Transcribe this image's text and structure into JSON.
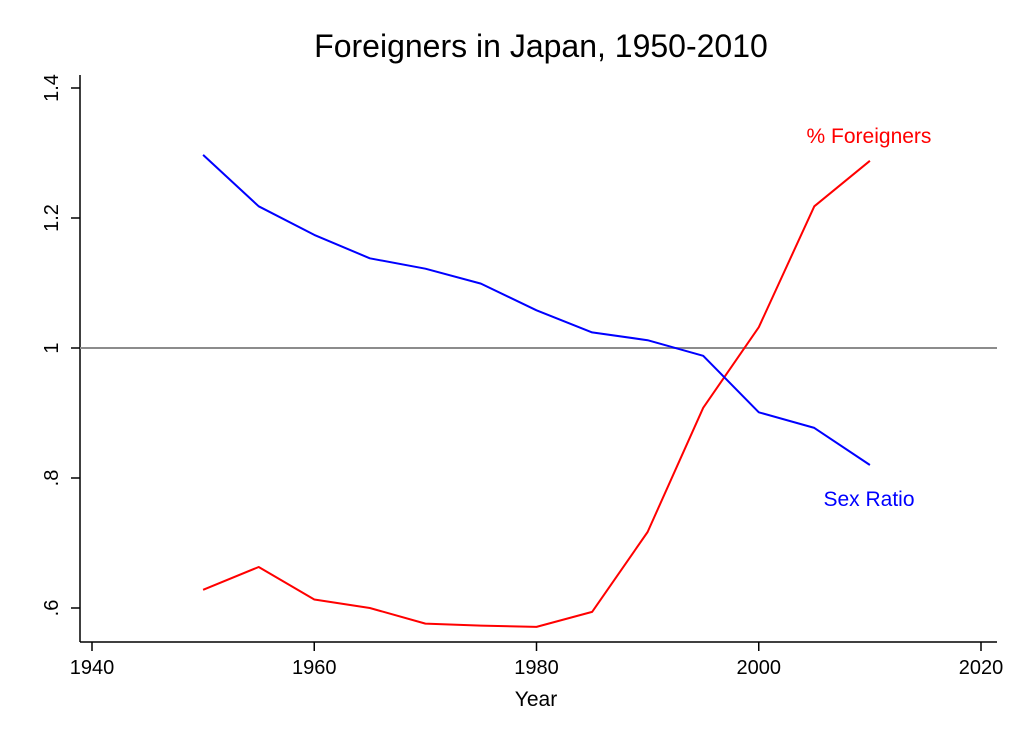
{
  "chart_data": {
    "type": "line",
    "title": "Foreigners in Japan, 1950-2010",
    "xlabel": "Year",
    "ylabel": "",
    "xlim": [
      1940,
      2020
    ],
    "ylim": [
      0.55,
      1.4
    ],
    "x_ticks": [
      1940,
      1960,
      1980,
      2000,
      2020
    ],
    "x_tick_labels": [
      "1940",
      "1960",
      "1980",
      "2000",
      "2020"
    ],
    "y_ticks": [
      0.6,
      0.8,
      1.0,
      1.2,
      1.4
    ],
    "y_tick_labels": [
      ".6",
      ".8",
      "1",
      "1.2",
      "1.4"
    ],
    "grid": false,
    "reference_line": {
      "y": 1,
      "color": "#8c8c8c"
    },
    "x": [
      1950,
      1955,
      1960,
      1965,
      1970,
      1975,
      1980,
      1985,
      1990,
      1995,
      2000,
      2005,
      2010
    ],
    "series": [
      {
        "name": "% Foreigners",
        "color": "#ff0000",
        "values": [
          0.628,
          0.663,
          0.613,
          0.6,
          0.576,
          0.573,
          0.571,
          0.594,
          0.717,
          0.908,
          1.032,
          1.218,
          1.288
        ]
      },
      {
        "name": "Sex Ratio",
        "color": "#0000ff",
        "values": [
          1.297,
          1.218,
          1.174,
          1.138,
          1.122,
          1.099,
          1.058,
          1.024,
          1.012,
          0.988,
          0.901,
          0.877,
          0.82
        ]
      }
    ]
  }
}
